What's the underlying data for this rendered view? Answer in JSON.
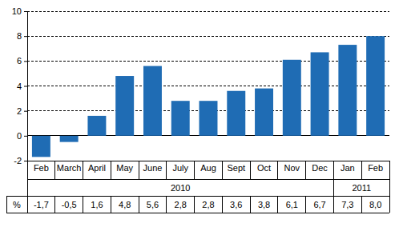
{
  "chart_data": {
    "type": "bar",
    "categories": [
      "Feb",
      "March",
      "April",
      "May",
      "June",
      "July",
      "Aug",
      "Sept",
      "Oct",
      "Nov",
      "Dec",
      "Jan",
      "Feb"
    ],
    "values": [
      -1.7,
      -0.5,
      1.6,
      4.8,
      5.6,
      2.8,
      2.8,
      3.6,
      3.8,
      6.1,
      6.7,
      7.3,
      8.0
    ],
    "value_labels": [
      "-1,7",
      "-0,5",
      "1,6",
      "4,8",
      "5,6",
      "2,8",
      "2,8",
      "3,6",
      "3,8",
      "6,1",
      "6,7",
      "7,3",
      "8,0"
    ],
    "data_labels": true,
    "category_groups": [
      {
        "label": "2010",
        "start": 0,
        "end": 10
      },
      {
        "label": "2011",
        "start": 11,
        "end": 12
      }
    ],
    "annotations": [
      "%"
    ],
    "color": "#1f6cb4",
    "ylim": [
      -2,
      10
    ],
    "yticks": [
      -2,
      0,
      2,
      4,
      6,
      8,
      10
    ],
    "grid": true
  }
}
